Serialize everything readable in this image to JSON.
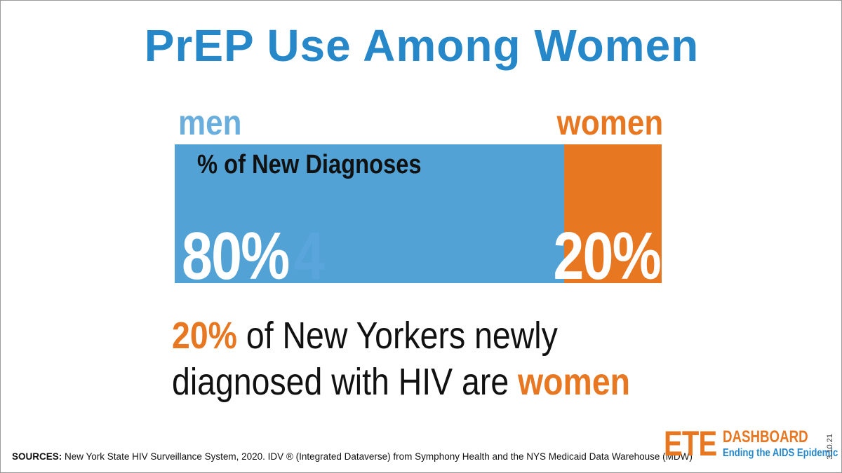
{
  "colors": {
    "title": "#2687c9",
    "men_label": "#6aaede",
    "men_bar": "#52a2d6",
    "women": "#e87722",
    "logo_sub": "#2687c9"
  },
  "title": "PrEP Use Among Women",
  "chart_data": {
    "type": "bar",
    "orientation": "stacked-horizontal",
    "title": "% of New Diagnoses",
    "categories": [
      "men",
      "women"
    ],
    "values": [
      80,
      20
    ],
    "unit": "%",
    "value_labels": [
      "80%",
      "20%"
    ],
    "ghost_glyph": "4"
  },
  "statement": {
    "pct": "20%",
    "line1_rest": " of New Yorkers newly",
    "line2_prefix": "diagnosed with HIV are ",
    "highlight": "women"
  },
  "sources": {
    "label": "SOURCES:",
    "text": " New York State HIV Surveillance System, 2020.  IDV ® (Integrated Dataverse) from Symphony Health and the NYS Medicaid Data Warehouse (MDW)"
  },
  "logo": {
    "big": "ETE",
    "top": "DASHBOARD",
    "sub": "Ending the AIDS Epidemic"
  },
  "date": "3.10.21"
}
